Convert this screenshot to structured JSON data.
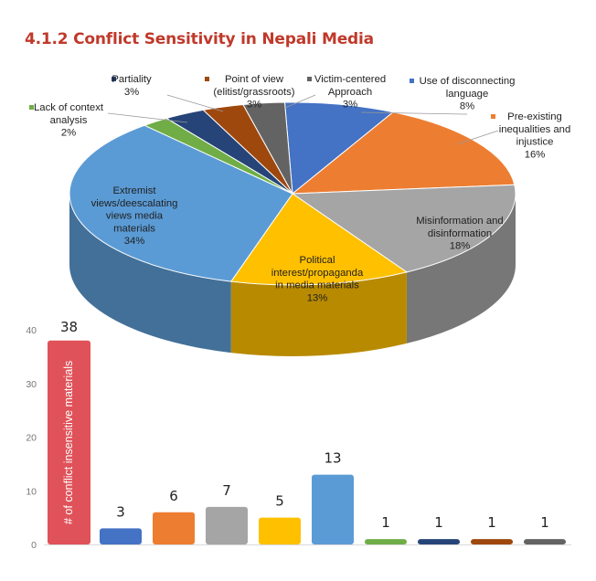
{
  "header": {
    "title": "4.1.2 Conflict Sensitivity in Nepali Media"
  },
  "chart_data": [
    {
      "type": "pie",
      "style": "3d",
      "slices": [
        {
          "lines": [
            "Use of disconnecting",
            "language",
            "8%"
          ],
          "value": 8,
          "color": "#4472c4"
        },
        {
          "lines": [
            "Pre-existing",
            "inequalities and",
            "injustice",
            "16%"
          ],
          "value": 16,
          "color": "#ed7d31"
        },
        {
          "lines": [
            "Misinformation and",
            "disinformation",
            "18%"
          ],
          "value": 18,
          "color": "#a5a5a5"
        },
        {
          "lines": [
            "Political",
            "interest/propaganda",
            "in media materials",
            "13%"
          ],
          "value": 13,
          "color": "#ffc000"
        },
        {
          "lines": [
            "Extremist",
            "views/deescalating",
            "views media",
            "materials",
            "34%"
          ],
          "value": 34,
          "color": "#5b9bd5"
        },
        {
          "lines": [
            "Lack of context",
            "analysis",
            "2%"
          ],
          "value": 2,
          "color": "#70ad47"
        },
        {
          "lines": [
            "Partiality",
            "3%"
          ],
          "value": 3,
          "color": "#264478"
        },
        {
          "lines": [
            "Point of view",
            "(elitist/grassroots)",
            "3%"
          ],
          "value": 3,
          "color": "#9e480e"
        },
        {
          "lines": [
            "Victim-centered",
            "Approach",
            "3%"
          ],
          "value": 3,
          "color": "#636363"
        }
      ]
    },
    {
      "type": "bar",
      "ylabel": "# of conflict insensitive materials",
      "ylim": [
        0,
        40
      ],
      "yticks": [
        "0",
        "10",
        "20",
        "30",
        "40"
      ],
      "values": [
        38,
        3,
        6,
        7,
        5,
        13,
        1,
        1,
        1,
        1
      ],
      "colors": [
        "#e05259",
        "#4472c4",
        "#ed7d31",
        "#a5a5a5",
        "#ffc000",
        "#5b9bd5",
        "#70ad47",
        "#264478",
        "#9e480e",
        "#636363"
      ]
    }
  ]
}
